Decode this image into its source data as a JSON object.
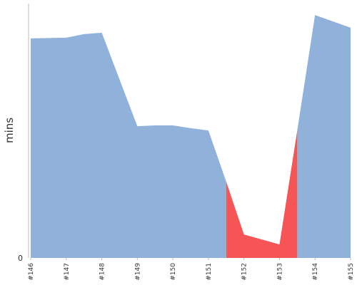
{
  "chart_data": {
    "type": "area",
    "y_label": "mins",
    "x": [
      0,
      1,
      1.5,
      2,
      3,
      3.5,
      4,
      4.5,
      5,
      5.5,
      6,
      7,
      7.5,
      8,
      9
    ],
    "series": [
      {
        "color": "#8fb1da",
        "values": [
          86.3,
          86.6,
          88,
          88.5,
          51.8,
          52.1,
          52.1,
          51,
          50.1,
          30,
          null,
          null,
          50.1,
          95.5,
          90.5
        ]
      },
      {
        "color": "#f55555",
        "values": [
          null,
          null,
          null,
          null,
          null,
          null,
          null,
          null,
          null,
          30,
          9.2,
          5.3,
          50.1,
          null,
          null
        ]
      }
    ],
    "xlim": [
      0,
      9
    ],
    "xticks": [
      {
        "value": 0,
        "label": "#146"
      },
      {
        "value": 1,
        "label": "#147"
      },
      {
        "value": 2,
        "label": "#148"
      },
      {
        "value": 3,
        "label": "#149"
      },
      {
        "value": 4,
        "label": "#150"
      },
      {
        "value": 5,
        "label": "#151"
      },
      {
        "value": 6,
        "label": "#152"
      },
      {
        "value": 7,
        "label": "#153"
      },
      {
        "value": 8,
        "label": "#154"
      },
      {
        "value": 9,
        "label": "#155"
      }
    ],
    "ylim": [
      0,
      100
    ],
    "yticks": [
      0
    ]
  }
}
